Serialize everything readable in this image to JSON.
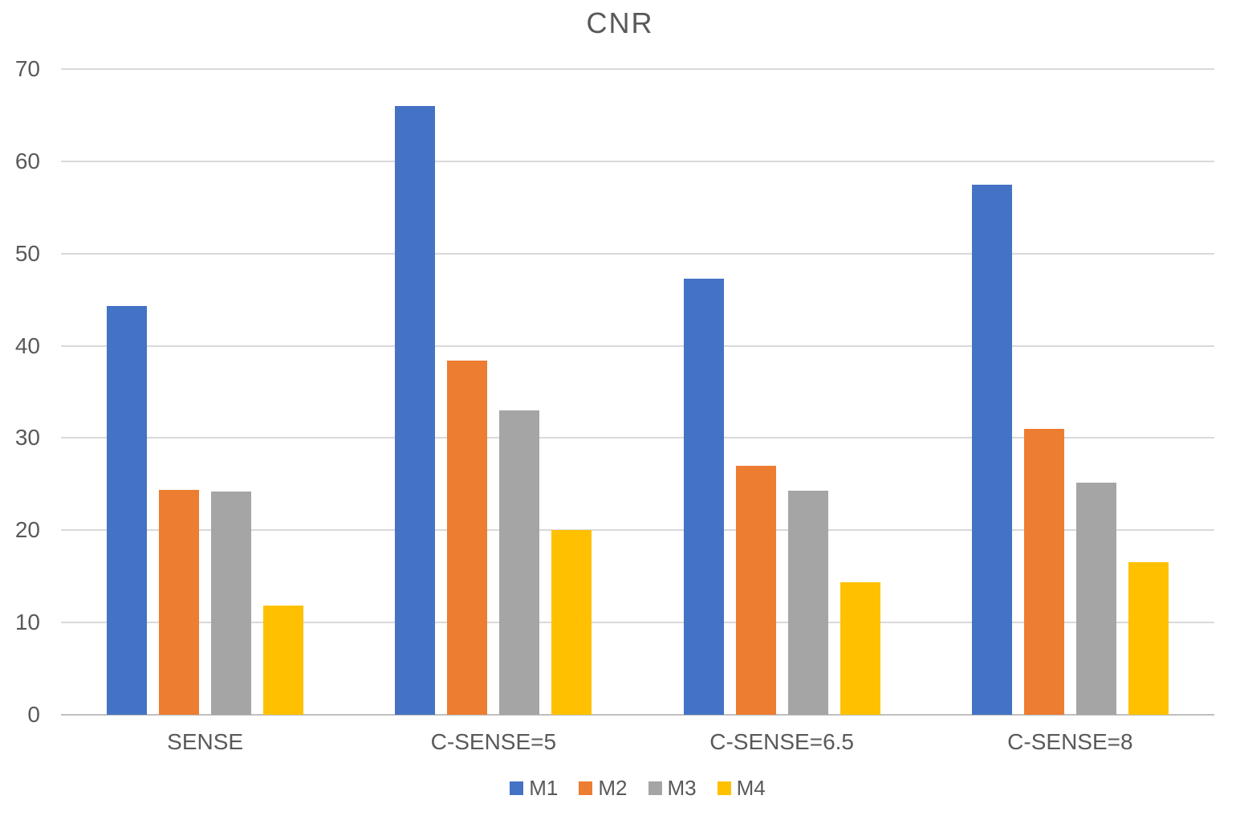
{
  "chart_data": {
    "type": "bar",
    "title": "CNR",
    "categories": [
      "SENSE",
      "C-SENSE=5",
      "C-SENSE=6.5",
      "C-SENSE=8"
    ],
    "series": [
      {
        "name": "M1",
        "color": "#4472C4",
        "values": [
          44.3,
          66.0,
          47.3,
          57.5
        ]
      },
      {
        "name": "M2",
        "color": "#ED7D31",
        "values": [
          24.4,
          38.4,
          27.0,
          31.0
        ]
      },
      {
        "name": "M3",
        "color": "#A5A5A5",
        "values": [
          24.2,
          33.0,
          24.3,
          25.2
        ]
      },
      {
        "name": "M4",
        "color": "#FFC000",
        "values": [
          11.8,
          20.0,
          14.4,
          16.5
        ]
      }
    ],
    "xlabel": "",
    "ylabel": "",
    "ylim": [
      0,
      70
    ],
    "yticks": [
      0,
      10,
      20,
      30,
      40,
      50,
      60,
      70
    ],
    "grid": true,
    "legend_position": "bottom"
  },
  "style_colors": {
    "text": "#595959",
    "gridline": "#D9D9D9",
    "axis_line": "#BFBFBF",
    "background": "#FFFFFF"
  }
}
